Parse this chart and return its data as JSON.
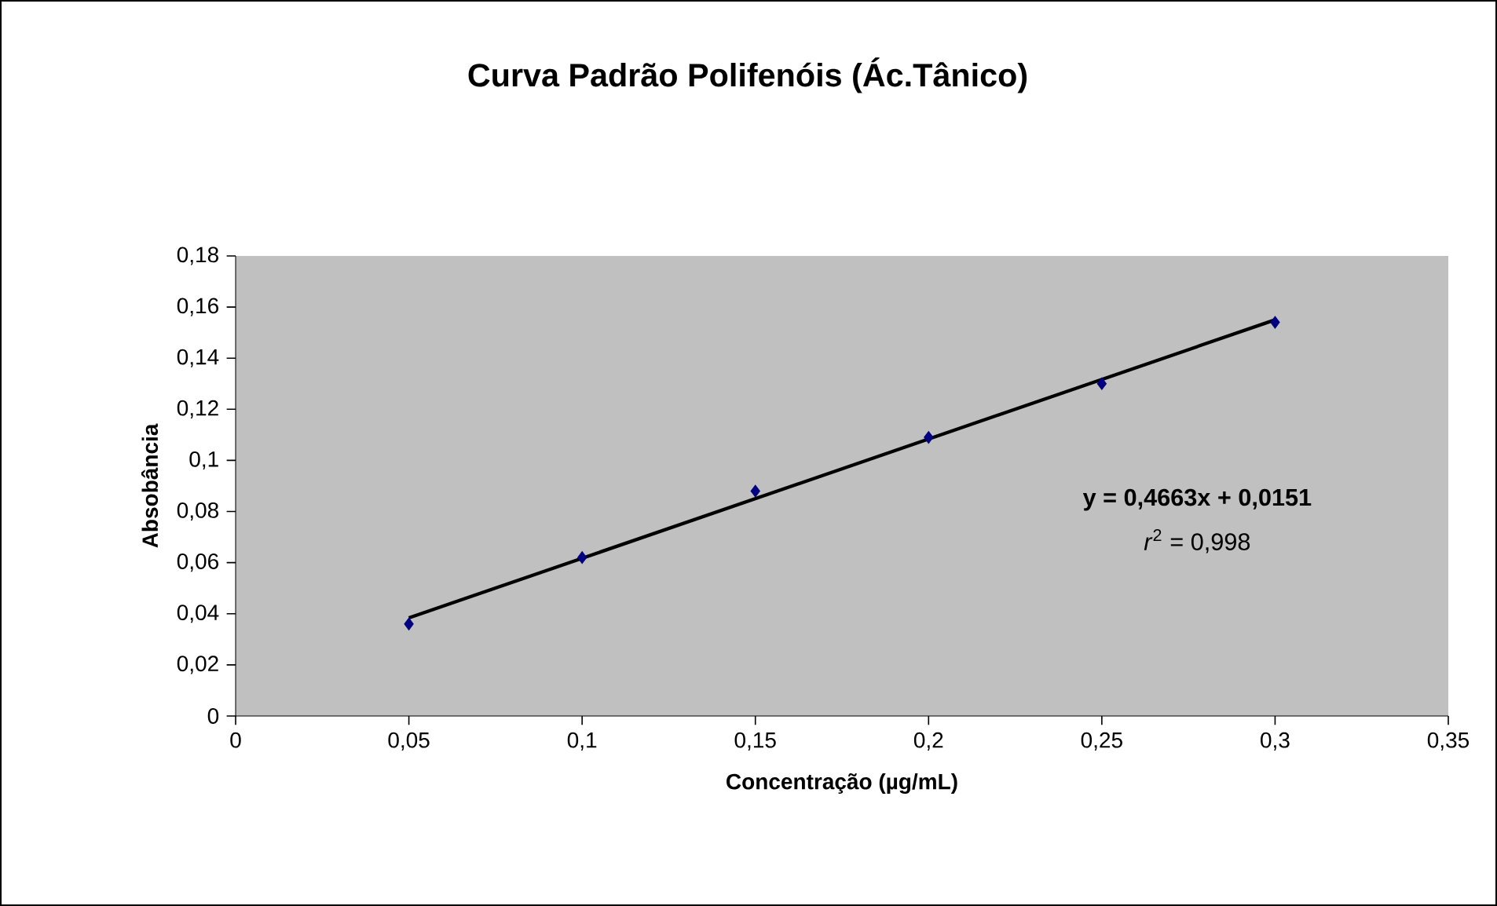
{
  "chart_data": {
    "type": "scatter",
    "title": "Curva Padrão Polifenóis (Ác.Tânico)",
    "xlabel": "Concentração (µg/mL)",
    "ylabel": "Absobância",
    "annotations": [
      "y = 0,4663x + 0,0151",
      "*r*$^{2}$ = 0,998"
    ],
    "series": [
      {
        "color": "#000080",
        "marker": "diamond",
        "x": [
          0.05,
          0.1,
          0.15,
          0.2,
          0.25,
          0.3
        ],
        "values": [
          0.036,
          0.062,
          0.088,
          0.109,
          0.13,
          0.154
        ]
      },
      {
        "type": "line",
        "color": "#000000",
        "x": [
          0.05,
          0.3
        ],
        "values": [
          0.0384,
          0.155
        ]
      }
    ],
    "xlim": [
      0,
      0.35
    ],
    "xticks": [
      {
        "value": 0,
        "label": "0"
      },
      {
        "value": 0.05,
        "label": "0,05"
      },
      {
        "value": 0.1,
        "label": "0,1"
      },
      {
        "value": 0.15,
        "label": "0,15"
      },
      {
        "value": 0.2,
        "label": "0,2"
      },
      {
        "value": 0.25,
        "label": "0,25"
      },
      {
        "value": 0.3,
        "label": "0,3"
      },
      {
        "value": 0.35,
        "label": "0,35"
      }
    ],
    "ylim": [
      0,
      0.18
    ],
    "yticks": [
      {
        "value": 0,
        "label": "0"
      },
      {
        "value": 0.02,
        "label": "0,02"
      },
      {
        "value": 0.04,
        "label": "0,04"
      },
      {
        "value": 0.06,
        "label": "0,06"
      },
      {
        "value": 0.08,
        "label": "0,08"
      },
      {
        "value": 0.1,
        "label": "0,1"
      },
      {
        "value": 0.12,
        "label": "0,12"
      },
      {
        "value": 0.14,
        "label": "0,14"
      },
      {
        "value": 0.16,
        "label": "0,16"
      },
      {
        "value": 0.18,
        "label": "0,18"
      }
    ]
  }
}
